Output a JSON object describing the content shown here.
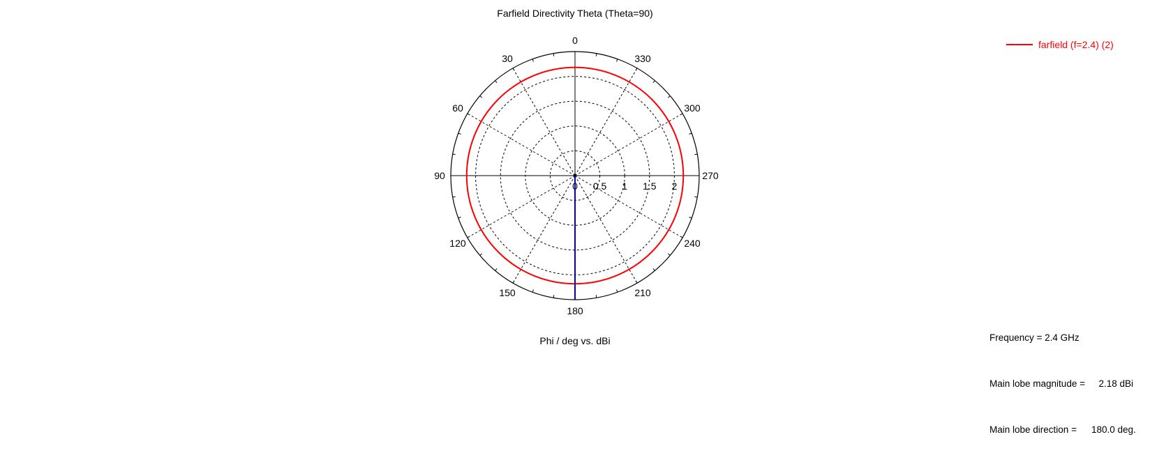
{
  "chart_data": {
    "type": "polar",
    "title": "Farfield Directivity Theta (Theta=90)",
    "xlabel": "Phi / deg vs. dBi",
    "angle_labels": [
      "0",
      "30",
      "60",
      "90",
      "120",
      "150",
      "180",
      "210",
      "240",
      "270",
      "300",
      "330"
    ],
    "radial_tick_labels": [
      "0",
      "0.5",
      "1",
      "1.5",
      "2"
    ],
    "radial_ticks": [
      0,
      0.5,
      1,
      1.5,
      2
    ],
    "radial_range": [
      0,
      2.5
    ],
    "angle_direction": "counterclockwise",
    "zero_location": "top",
    "grid": true,
    "legend_position": "top-right",
    "series": [
      {
        "name": "farfield (f=2.4) (2)",
        "color": "#ff0000",
        "phi_deg": [
          0,
          30,
          60,
          90,
          120,
          150,
          180,
          210,
          240,
          270,
          300,
          330,
          360
        ],
        "values_dbi": [
          2.18,
          2.18,
          2.18,
          2.18,
          2.18,
          2.18,
          2.18,
          2.18,
          2.18,
          2.18,
          2.18,
          2.18,
          2.18
        ]
      }
    ],
    "main_lobe_marker": {
      "phi_deg": 180,
      "color": "#0000cc"
    }
  },
  "info": {
    "frequency_label": "Frequency = 2.4 GHz",
    "magnitude_label": "Main lobe magnitude =",
    "magnitude_value": "2.18 dBi",
    "direction_label": "Main lobe direction =",
    "direction_value": "180.0 deg."
  }
}
